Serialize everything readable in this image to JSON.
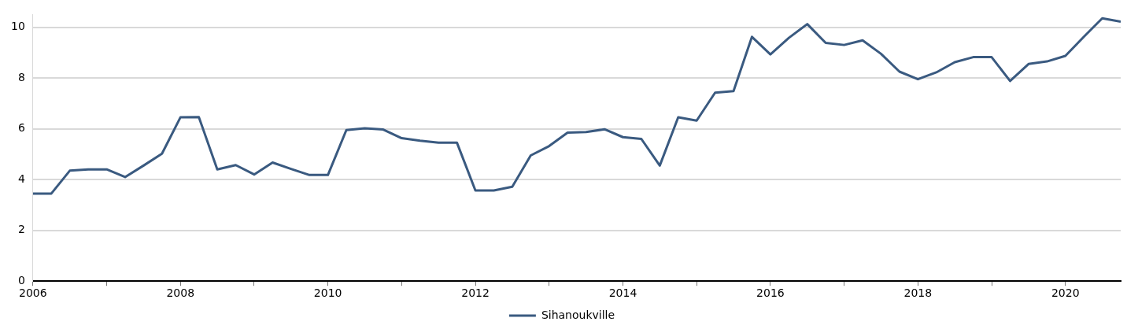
{
  "chart_data": {
    "type": "line",
    "x": [
      2006,
      2006.25,
      2006.5,
      2006.75,
      2007,
      2007.25,
      2007.5,
      2007.75,
      2008,
      2008.25,
      2008.5,
      2008.75,
      2009,
      2009.25,
      2009.5,
      2009.75,
      2010,
      2010.25,
      2010.5,
      2010.75,
      2011,
      2011.25,
      2011.5,
      2011.75,
      2012,
      2012.25,
      2012.5,
      2012.75,
      2013,
      2013.25,
      2013.5,
      2013.75,
      2014,
      2014.25,
      2014.5,
      2014.75,
      2015,
      2015.25,
      2015.5,
      2015.75,
      2016,
      2016.25,
      2016.5,
      2016.75,
      2017,
      2017.25,
      2017.5,
      2017.75,
      2018,
      2018.25,
      2018.5,
      2018.75,
      2019,
      2019.25,
      2019.5,
      2019.75,
      2020,
      2020.25,
      2020.5,
      2020.75
    ],
    "series": [
      {
        "name": "Sihanoukville",
        "color": "#3a5a80",
        "values": [
          3.45,
          3.45,
          4.35,
          4.4,
          4.4,
          4.1,
          4.55,
          5.02,
          6.45,
          6.46,
          4.4,
          4.57,
          4.2,
          4.67,
          4.42,
          4.18,
          4.18,
          5.95,
          6.02,
          5.97,
          5.63,
          5.53,
          5.45,
          5.45,
          3.57,
          3.57,
          3.72,
          4.95,
          5.32,
          5.85,
          5.87,
          5.98,
          5.67,
          5.6,
          4.55,
          6.45,
          6.32,
          7.42,
          7.48,
          9.62,
          8.93,
          9.58,
          10.12,
          9.38,
          9.3,
          9.48,
          8.95,
          8.25,
          7.95,
          8.22,
          8.62,
          8.82,
          8.82,
          7.88,
          8.55,
          8.65,
          8.87,
          9.62,
          10.35,
          10.22
        ]
      }
    ],
    "xlim": [
      2006,
      2020.75
    ],
    "xticks": [
      2006,
      {
        "value": 2007,
        "label": null
      },
      2008,
      {
        "value": 2009,
        "label": null
      },
      2010,
      {
        "value": 2011,
        "label": null
      },
      2012,
      {
        "value": 2013,
        "label": null
      },
      2014,
      {
        "value": 2015,
        "label": null
      },
      2016,
      {
        "value": 2017,
        "label": null
      },
      2018,
      {
        "value": 2019,
        "label": null
      },
      2020
    ],
    "ylim": [
      0,
      10.5
    ],
    "yticks": [
      0,
      2,
      4,
      6,
      8,
      10
    ],
    "grid": "y",
    "legend": "bottom",
    "marker": "none",
    "line_style": "solid"
  }
}
